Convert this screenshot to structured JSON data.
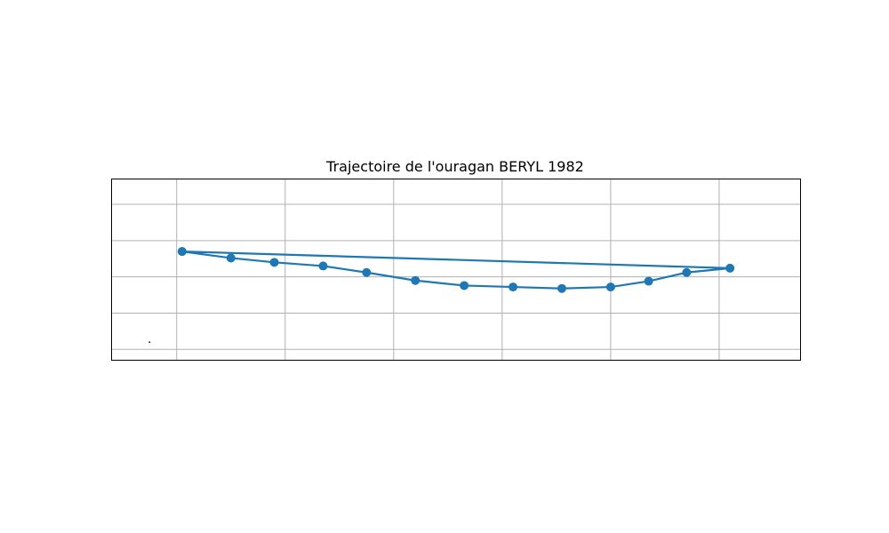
{
  "chart_data": {
    "type": "line",
    "title": "Trajectoire de l'ouragan BERYL 1982",
    "xlabel": "",
    "ylabel": "",
    "xlim": [
      -38.2,
      -25.5
    ],
    "ylim": [
      10.25,
      12.75
    ],
    "grid": true,
    "x_gridlines": [
      -37,
      -35,
      -33,
      -31,
      -29,
      -27
    ],
    "y_gridlines": [
      10.4,
      10.9,
      11.4,
      11.9,
      12.4
    ],
    "series": [
      {
        "color": "#1f77b4",
        "marker": "circle",
        "points": [
          {
            "x": -36.9,
            "y": 11.75
          },
          {
            "x": -36.0,
            "y": 11.66
          },
          {
            "x": -35.2,
            "y": 11.6
          },
          {
            "x": -34.3,
            "y": 11.55
          },
          {
            "x": -33.5,
            "y": 11.46
          },
          {
            "x": -32.6,
            "y": 11.35
          },
          {
            "x": -31.7,
            "y": 11.28
          },
          {
            "x": -30.8,
            "y": 11.26
          },
          {
            "x": -29.9,
            "y": 11.24
          },
          {
            "x": -29.0,
            "y": 11.26
          },
          {
            "x": -28.3,
            "y": 11.34
          },
          {
            "x": -27.6,
            "y": 11.46
          },
          {
            "x": -26.8,
            "y": 11.52
          },
          {
            "x": -36.9,
            "y": 11.75
          }
        ]
      }
    ],
    "stray_mark": {
      "x": -37.5,
      "y": 10.5
    }
  }
}
